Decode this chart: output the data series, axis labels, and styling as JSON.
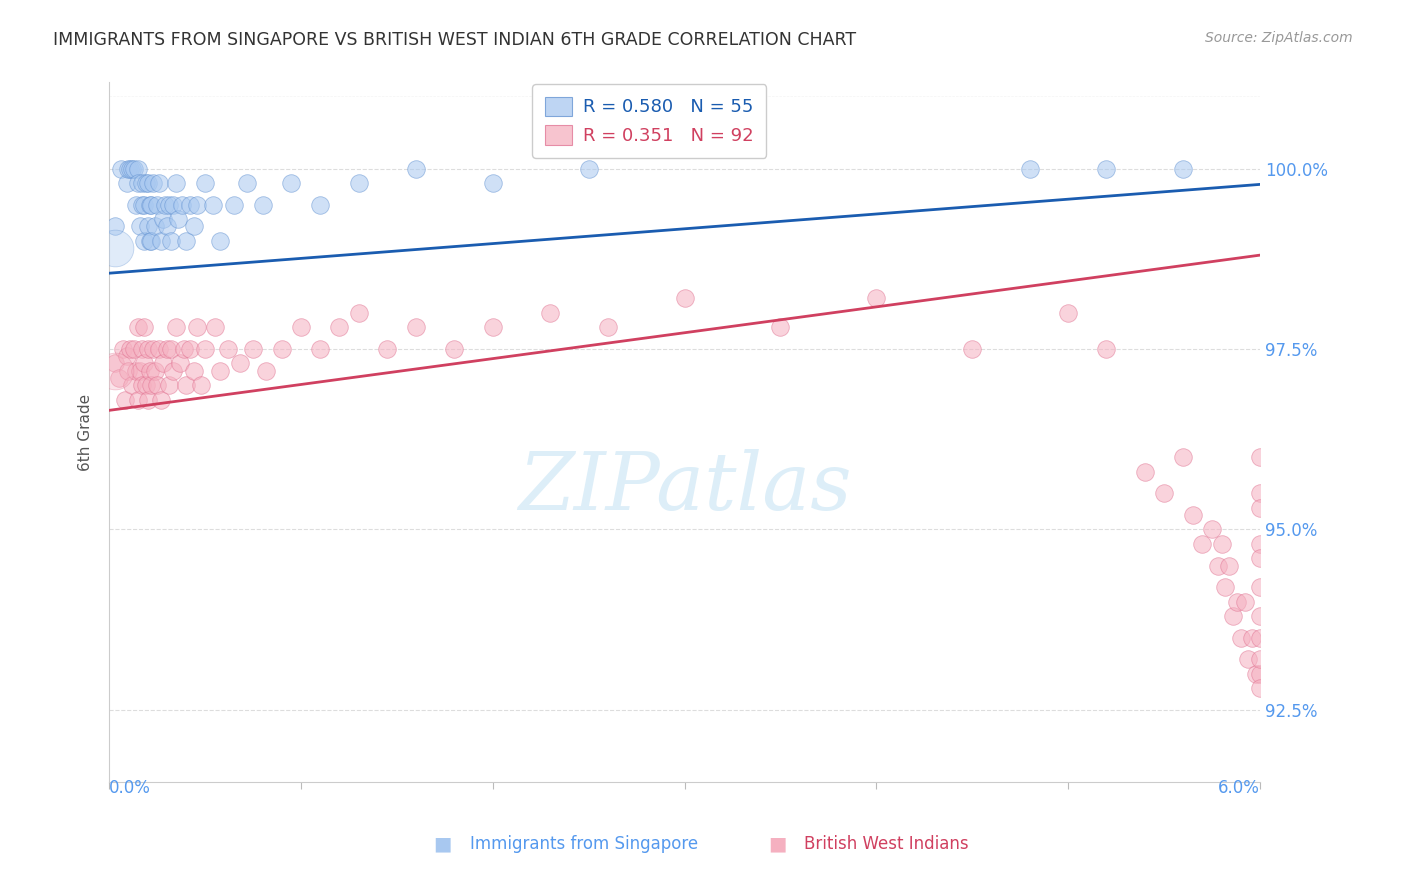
{
  "title": "IMMIGRANTS FROM SINGAPORE VS BRITISH WEST INDIAN 6TH GRADE CORRELATION CHART",
  "source": "Source: ZipAtlas.com",
  "ylabel": "6th Grade",
  "y_ticks": [
    92.5,
    95.0,
    97.5,
    100.0
  ],
  "y_tick_labels": [
    "92.5%",
    "95.0%",
    "97.5%",
    "100.0%"
  ],
  "xlim": [
    0.0,
    6.0
  ],
  "ylim": [
    91.5,
    101.2
  ],
  "legend_r1": "0.580",
  "legend_n1": "55",
  "legend_r2": "0.351",
  "legend_n2": "92",
  "blue_fill": "#A8C8F0",
  "pink_fill": "#F5B0C0",
  "blue_edge": "#6090D0",
  "pink_edge": "#E07090",
  "blue_line": "#1A5CB0",
  "pink_line": "#D04060",
  "title_color": "#333333",
  "tick_color": "#5599EE",
  "watermark_color": "#DDEEF8",
  "grid_color": "#DDDDDD",
  "singapore_x": [
    0.03,
    0.06,
    0.09,
    0.1,
    0.11,
    0.12,
    0.13,
    0.14,
    0.15,
    0.15,
    0.16,
    0.17,
    0.17,
    0.18,
    0.18,
    0.19,
    0.2,
    0.2,
    0.21,
    0.21,
    0.22,
    0.22,
    0.23,
    0.24,
    0.25,
    0.26,
    0.27,
    0.28,
    0.29,
    0.3,
    0.31,
    0.32,
    0.33,
    0.35,
    0.36,
    0.38,
    0.4,
    0.42,
    0.44,
    0.46,
    0.5,
    0.54,
    0.58,
    0.65,
    0.72,
    0.8,
    0.95,
    1.1,
    1.3,
    1.6,
    2.0,
    2.5,
    4.8,
    5.2,
    5.6
  ],
  "singapore_y": [
    99.2,
    100.0,
    99.8,
    100.0,
    100.0,
    100.0,
    100.0,
    99.5,
    100.0,
    99.8,
    99.2,
    99.5,
    99.8,
    99.0,
    99.5,
    99.8,
    99.2,
    99.8,
    99.0,
    99.5,
    99.0,
    99.5,
    99.8,
    99.2,
    99.5,
    99.8,
    99.0,
    99.3,
    99.5,
    99.2,
    99.5,
    99.0,
    99.5,
    99.8,
    99.3,
    99.5,
    99.0,
    99.5,
    99.2,
    99.5,
    99.8,
    99.5,
    99.0,
    99.5,
    99.8,
    99.5,
    99.8,
    99.5,
    99.8,
    100.0,
    99.8,
    100.0,
    100.0,
    100.0,
    100.0
  ],
  "bwi_x": [
    0.03,
    0.05,
    0.07,
    0.08,
    0.09,
    0.1,
    0.11,
    0.12,
    0.13,
    0.14,
    0.15,
    0.15,
    0.16,
    0.17,
    0.17,
    0.18,
    0.18,
    0.19,
    0.2,
    0.2,
    0.21,
    0.22,
    0.23,
    0.24,
    0.25,
    0.26,
    0.27,
    0.28,
    0.3,
    0.31,
    0.32,
    0.33,
    0.35,
    0.37,
    0.39,
    0.4,
    0.42,
    0.44,
    0.46,
    0.48,
    0.5,
    0.55,
    0.58,
    0.62,
    0.68,
    0.75,
    0.82,
    0.9,
    1.0,
    1.1,
    1.2,
    1.3,
    1.45,
    1.6,
    1.8,
    2.0,
    2.3,
    2.6,
    3.0,
    3.5,
    4.0,
    4.5,
    5.0,
    5.2,
    5.4,
    5.5,
    5.6,
    5.65,
    5.7,
    5.75,
    5.78,
    5.8,
    5.82,
    5.84,
    5.86,
    5.88,
    5.9,
    5.92,
    5.94,
    5.96,
    5.98,
    6.0,
    6.0,
    6.0,
    6.0,
    6.0,
    6.0,
    6.0,
    6.0,
    6.0,
    6.0,
    6.0
  ],
  "bwi_y": [
    97.3,
    97.1,
    97.5,
    96.8,
    97.4,
    97.2,
    97.5,
    97.0,
    97.5,
    97.2,
    97.8,
    96.8,
    97.2,
    97.5,
    97.0,
    97.3,
    97.8,
    97.0,
    97.5,
    96.8,
    97.2,
    97.0,
    97.5,
    97.2,
    97.0,
    97.5,
    96.8,
    97.3,
    97.5,
    97.0,
    97.5,
    97.2,
    97.8,
    97.3,
    97.5,
    97.0,
    97.5,
    97.2,
    97.8,
    97.0,
    97.5,
    97.8,
    97.2,
    97.5,
    97.3,
    97.5,
    97.2,
    97.5,
    97.8,
    97.5,
    97.8,
    98.0,
    97.5,
    97.8,
    97.5,
    97.8,
    98.0,
    97.8,
    98.2,
    97.8,
    98.2,
    97.5,
    98.0,
    97.5,
    95.8,
    95.5,
    96.0,
    95.2,
    94.8,
    95.0,
    94.5,
    94.8,
    94.2,
    94.5,
    93.8,
    94.0,
    93.5,
    94.0,
    93.2,
    93.5,
    93.0,
    95.5,
    94.8,
    94.2,
    93.5,
    93.0,
    96.0,
    95.3,
    94.6,
    93.8,
    93.2,
    92.8
  ],
  "large_bwi_x": [
    0.03
  ],
  "large_bwi_y": [
    97.3
  ],
  "blue_line_x0": 0.0,
  "blue_line_x1": 6.0,
  "blue_line_y0": 98.55,
  "blue_line_y1": 99.78,
  "pink_line_x0": 0.0,
  "pink_line_x1": 6.0,
  "pink_line_y0": 96.65,
  "pink_line_y1": 98.8
}
